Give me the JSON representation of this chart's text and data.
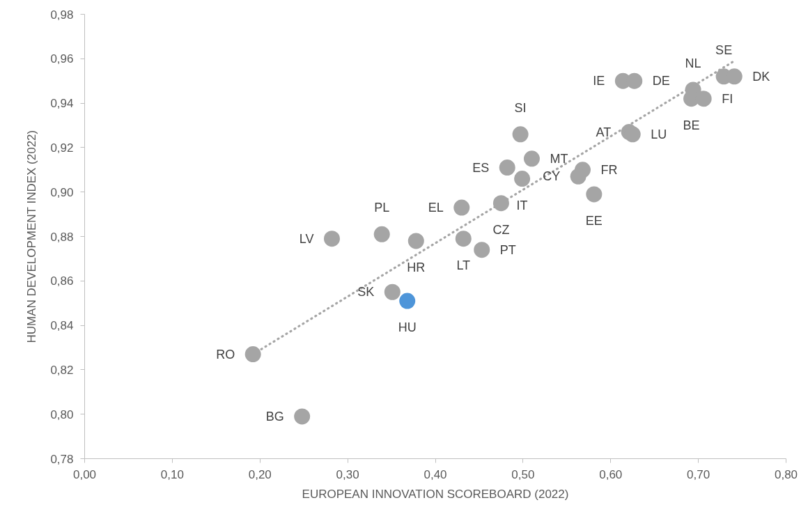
{
  "chart_data": {
    "type": "scatter",
    "xlabel": "EUROPEAN INNOVATION SCOREBOARD (2022)",
    "ylabel": "HUMAN DEVELOPMENT INDEX (2022)",
    "xlim": [
      0,
      0.8
    ],
    "ylim": [
      0.78,
      0.98
    ],
    "xticks": [
      {
        "value": 0,
        "label": "0,00"
      },
      {
        "value": 0.1,
        "label": "0,10"
      },
      {
        "value": 0.2,
        "label": "0,20"
      },
      {
        "value": 0.3,
        "label": "0,30"
      },
      {
        "value": 0.4,
        "label": "0,40"
      },
      {
        "value": 0.5,
        "label": "0,50"
      },
      {
        "value": 0.6,
        "label": "0,60"
      },
      {
        "value": 0.7,
        "label": "0,70"
      },
      {
        "value": 0.8,
        "label": "0,80"
      }
    ],
    "yticks": [
      {
        "value": 0.78,
        "label": "0,78"
      },
      {
        "value": 0.8,
        "label": "0,80"
      },
      {
        "value": 0.82,
        "label": "0,82"
      },
      {
        "value": 0.84,
        "label": "0,84"
      },
      {
        "value": 0.86,
        "label": "0,86"
      },
      {
        "value": 0.88,
        "label": "0,88"
      },
      {
        "value": 0.9,
        "label": "0,90"
      },
      {
        "value": 0.92,
        "label": "0,92"
      },
      {
        "value": 0.94,
        "label": "0,94"
      },
      {
        "value": 0.96,
        "label": "0,96"
      },
      {
        "value": 0.98,
        "label": "0,98"
      }
    ],
    "grid": false,
    "marker": "circle",
    "series": [
      {
        "type": "line",
        "color": "#a5a5a5",
        "line_style": "dotted",
        "marker": "none",
        "x": [
          0.192,
          0.741
        ],
        "values": [
          0.827,
          0.959
        ]
      },
      {
        "color": "#a5a5a5",
        "x": [
          0.192,
          0.248,
          0.282,
          0.339,
          0.378,
          0.351,
          0.43,
          0.432,
          0.453,
          0.475,
          0.482,
          0.499,
          0.497,
          0.51,
          0.568,
          0.563,
          0.581,
          0.621,
          0.625,
          0.614,
          0.627,
          0.694,
          0.692,
          0.706,
          0.729,
          0.741
        ],
        "values": [
          0.827,
          0.799,
          0.879,
          0.881,
          0.878,
          0.855,
          0.893,
          0.879,
          0.874,
          0.895,
          0.911,
          0.906,
          0.926,
          0.915,
          0.91,
          0.907,
          0.899,
          0.927,
          0.926,
          0.95,
          0.95,
          0.946,
          0.942,
          0.942,
          0.952,
          0.952
        ]
      },
      {
        "color": "#4e95d9",
        "x": [
          0.368
        ],
        "values": [
          0.851
        ]
      }
    ],
    "annotations": [
      {
        "text": "RO",
        "x": 0.192,
        "y": 0.827
      },
      {
        "text": "BG",
        "x": 0.248,
        "y": 0.799
      },
      {
        "text": "LV",
        "x": 0.282,
        "y": 0.879
      },
      {
        "text": "PL",
        "x": 0.339,
        "y": 0.881
      },
      {
        "text": "HR",
        "x": 0.378,
        "y": 0.878
      },
      {
        "text": "SK",
        "x": 0.351,
        "y": 0.855
      },
      {
        "text": "HU",
        "x": 0.368,
        "y": 0.851
      },
      {
        "text": "EL",
        "x": 0.43,
        "y": 0.893
      },
      {
        "text": "LT",
        "x": 0.432,
        "y": 0.879
      },
      {
        "text": "PT",
        "x": 0.453,
        "y": 0.874
      },
      {
        "text": "CZ",
        "x": 0.475,
        "y": 0.895
      },
      {
        "text": "ES",
        "x": 0.482,
        "y": 0.911
      },
      {
        "text": "IT",
        "x": 0.499,
        "y": 0.906
      },
      {
        "text": "SI",
        "x": 0.497,
        "y": 0.926
      },
      {
        "text": "MT",
        "x": 0.51,
        "y": 0.915
      },
      {
        "text": "FR",
        "x": 0.568,
        "y": 0.91
      },
      {
        "text": "CY",
        "x": 0.563,
        "y": 0.907
      },
      {
        "text": "EE",
        "x": 0.581,
        "y": 0.899
      },
      {
        "text": "AT",
        "x": 0.621,
        "y": 0.927
      },
      {
        "text": "LU",
        "x": 0.625,
        "y": 0.926
      },
      {
        "text": "IE",
        "x": 0.614,
        "y": 0.95
      },
      {
        "text": "DE",
        "x": 0.627,
        "y": 0.95
      },
      {
        "text": "NL",
        "x": 0.694,
        "y": 0.946
      },
      {
        "text": "BE",
        "x": 0.692,
        "y": 0.942
      },
      {
        "text": "FI",
        "x": 0.706,
        "y": 0.942
      },
      {
        "text": "SE",
        "x": 0.729,
        "y": 0.952
      },
      {
        "text": "DK",
        "x": 0.741,
        "y": 0.952
      }
    ]
  }
}
